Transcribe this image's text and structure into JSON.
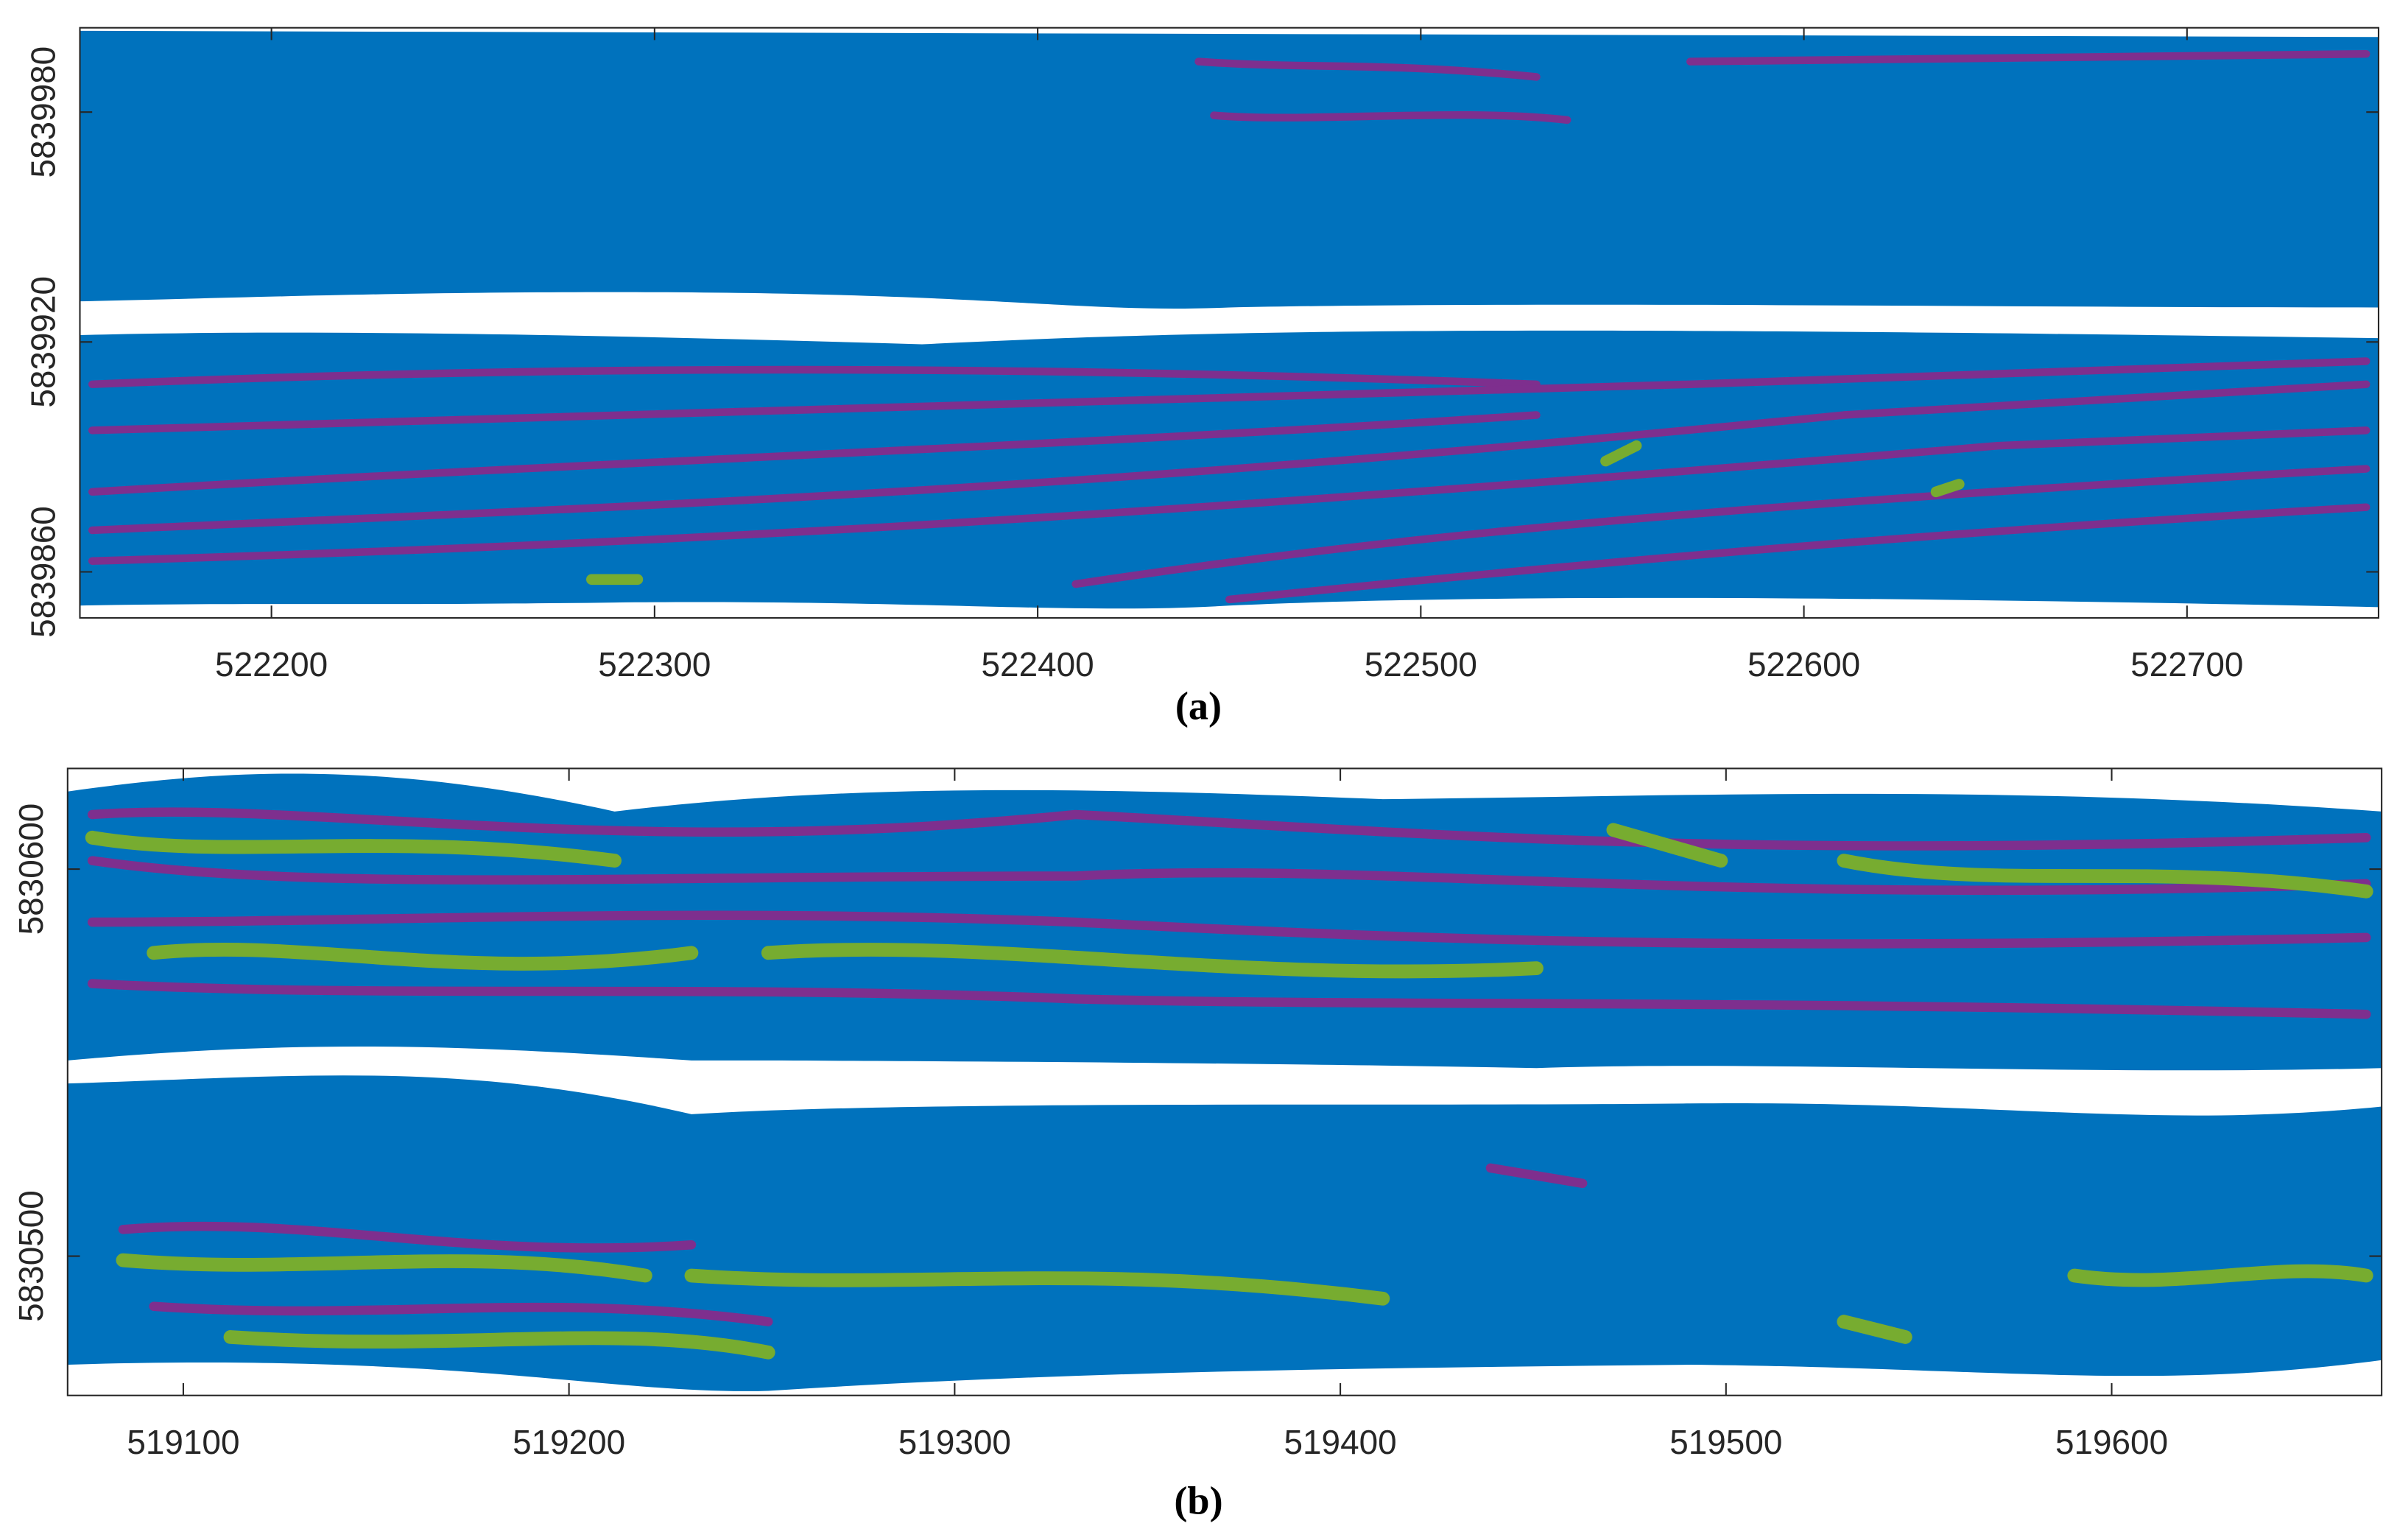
{
  "chart_data": [
    {
      "type": "map",
      "caption": "(a)",
      "xlim": [
        522150,
        522750
      ],
      "xticks": [
        522200,
        522300,
        522400,
        522500,
        522600,
        522700
      ],
      "ylim": [
        5839848,
        5840002
      ],
      "yticks": [
        5839860,
        5839920,
        5839980
      ]
    },
    {
      "type": "map",
      "caption": "(b)",
      "xlim": [
        519070,
        519670
      ],
      "xticks": [
        519100,
        519200,
        519300,
        519400,
        519500,
        519600
      ],
      "ylim": [
        5830464,
        5830626
      ],
      "yticks": [
        5830500,
        5830600
      ]
    }
  ]
}
